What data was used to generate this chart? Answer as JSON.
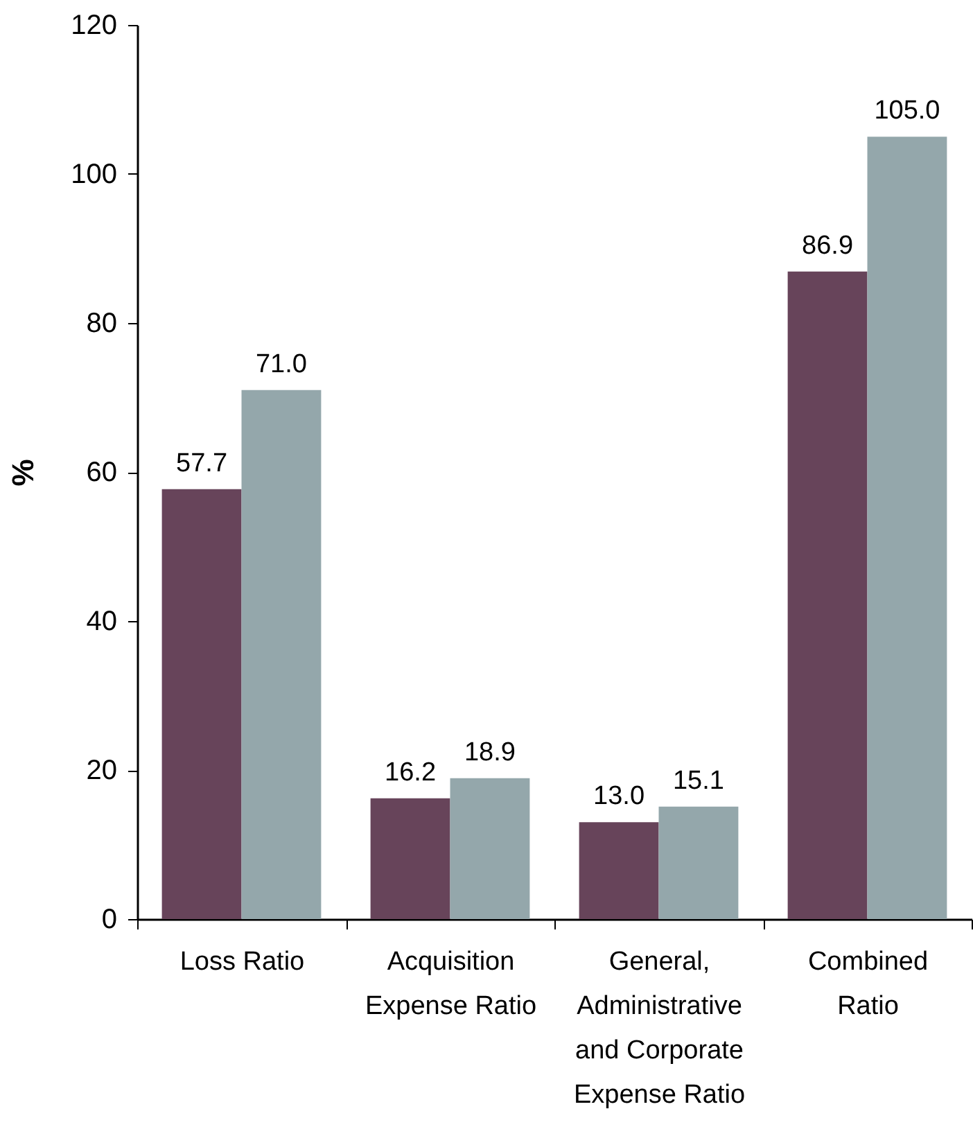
{
  "chart_data": {
    "type": "bar",
    "categories": [
      "Loss Ratio",
      "Acquisition Expense Ratio",
      "General, Administrative and Corporate Expense Ratio",
      "Combined Ratio"
    ],
    "series": [
      {
        "color": "#67445a",
        "values": [
          57.7,
          16.2,
          13.0,
          86.9
        ],
        "value_labels": [
          "57.7",
          "16.2",
          "13.0",
          "86.9"
        ]
      },
      {
        "color": "#94a7ab",
        "values": [
          71.0,
          18.9,
          15.1,
          105.0
        ],
        "value_labels": [
          "71.0",
          "18.9",
          "15.1",
          "105.0"
        ]
      }
    ],
    "ylabel": "%",
    "ylim": [
      0,
      120
    ],
    "yticks": [
      0,
      20,
      40,
      60,
      80,
      100,
      120
    ],
    "grid": false,
    "legend": false
  }
}
